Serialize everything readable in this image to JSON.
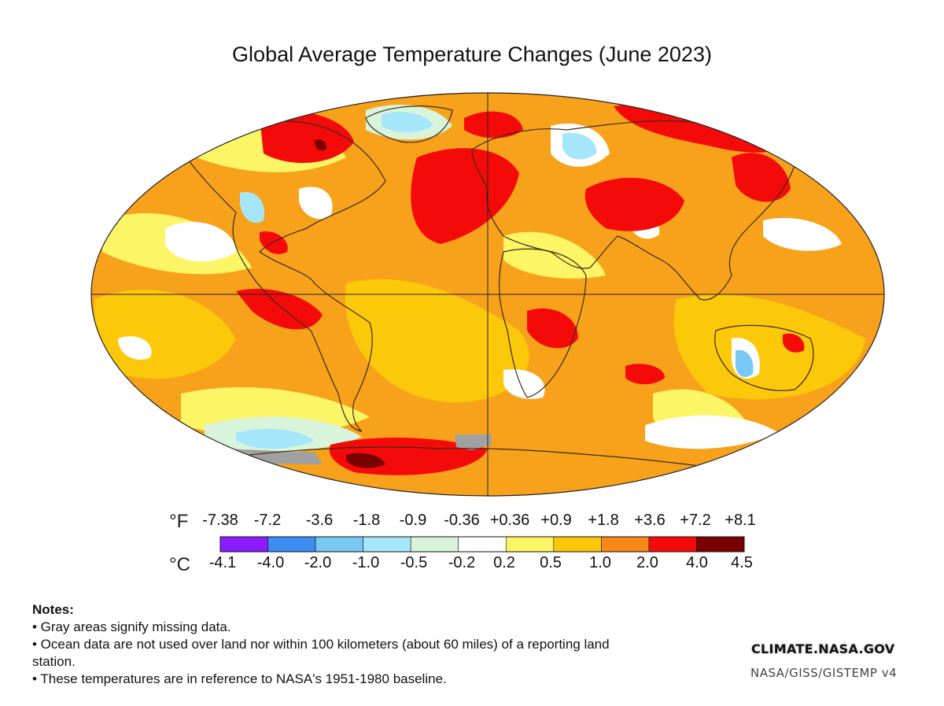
{
  "title": "Global Average Temperature Changes (June 2023)",
  "colors": {
    "ocean_base": "#f7a21a",
    "missing_data": "#a0a0a0",
    "coastline": "#3a2a1a",
    "grid": "#222222"
  },
  "legend": {
    "f_unit": "°F",
    "c_unit": "°C",
    "f_ticks": [
      "-7.38",
      "-7.2",
      "-3.6",
      "-1.8",
      "-0.9",
      "-0.36",
      "+0.36",
      "+0.9",
      "+1.8",
      "+3.6",
      "+7.2",
      "+8.1"
    ],
    "c_ticks": [
      "-4.1",
      "-4.0",
      "-2.0",
      "-1.0",
      "-0.5",
      "-0.2",
      "0.2",
      "0.5",
      "1.0",
      "2.0",
      "4.0",
      "4.5"
    ],
    "swatches": [
      "#8a1cff",
      "#3d8cf0",
      "#78c8f4",
      "#a6e6fa",
      "#d8f5dc",
      "#ffffff",
      "#fcf565",
      "#fcc80a",
      "#f7881a",
      "#f50a0a",
      "#7a0000"
    ]
  },
  "notes": {
    "heading": "Notes:",
    "items": [
      "• Gray areas signify missing data.",
      "• Ocean data are not used over land nor within 100 kilometers (about 60 miles) of a reporting land station.",
      "• These temperatures are in reference to NASA's 1951-1980 baseline."
    ]
  },
  "source": {
    "logo": "CLIMATE.NASA.GOV",
    "version": "NASA/GISS/GISTEMP v4"
  }
}
